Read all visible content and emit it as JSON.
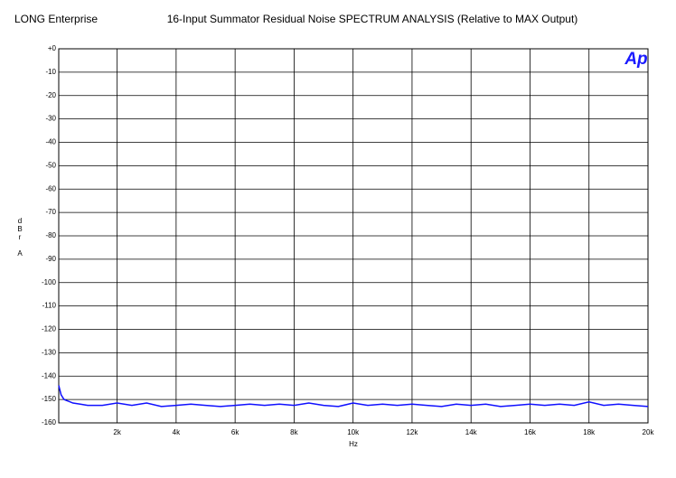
{
  "chart_data": {
    "type": "line",
    "header": "LONG Enterprise",
    "title": "16-Input Summator Residual Noise  SPECTRUM ANALYSIS (Relative to MAX Output)",
    "logo": "Ap",
    "ylabel": "dBr A",
    "xlabel": "Hz",
    "color": "#1010ff",
    "grid": true,
    "xlim": [
      20,
      20000
    ],
    "ylim": [
      -160,
      0
    ],
    "xticks": [
      {
        "value": 2000,
        "label": "2k"
      },
      {
        "value": 4000,
        "label": "4k"
      },
      {
        "value": 6000,
        "label": "6k"
      },
      {
        "value": 8000,
        "label": "8k"
      },
      {
        "value": 10000,
        "label": "10k"
      },
      {
        "value": 12000,
        "label": "12k"
      },
      {
        "value": 14000,
        "label": "14k"
      },
      {
        "value": 16000,
        "label": "16k"
      },
      {
        "value": 18000,
        "label": "18k"
      },
      {
        "value": 20000,
        "label": "20k"
      }
    ],
    "yticks": [
      {
        "value": 0,
        "label": "+0"
      },
      -10,
      -20,
      -30,
      -40,
      -50,
      -60,
      -70,
      -80,
      -90,
      -100,
      -110,
      -120,
      -130,
      -140,
      -150,
      -160
    ],
    "x": [
      20,
      100,
      200,
      300,
      400,
      500,
      750,
      1000,
      1500,
      2000,
      2500,
      3000,
      3500,
      4000,
      4500,
      5000,
      5500,
      6000,
      6500,
      7000,
      7500,
      8000,
      8500,
      9000,
      9500,
      10000,
      10500,
      11000,
      11500,
      12000,
      12500,
      13000,
      13500,
      14000,
      14500,
      15000,
      15500,
      16000,
      16500,
      17000,
      17500,
      18000,
      18500,
      19000,
      19500,
      20000
    ],
    "values": [
      -144,
      -148,
      -150,
      -150.5,
      -151,
      -151.5,
      -152,
      -152.5,
      -152.5,
      -151.5,
      -152.5,
      -151.5,
      -153,
      -152.5,
      -152,
      -152.5,
      -153,
      -152.5,
      -152,
      -152.5,
      -152,
      -152.5,
      -151.5,
      -152.5,
      -153,
      -151.5,
      -152.5,
      -152,
      -152.5,
      -152,
      -152.5,
      -153,
      -152,
      -152.5,
      -152,
      -153,
      -152.5,
      -152,
      -152.5,
      -152,
      -152.5,
      -151,
      -152.5,
      -152,
      -152.5,
      -153
    ]
  }
}
